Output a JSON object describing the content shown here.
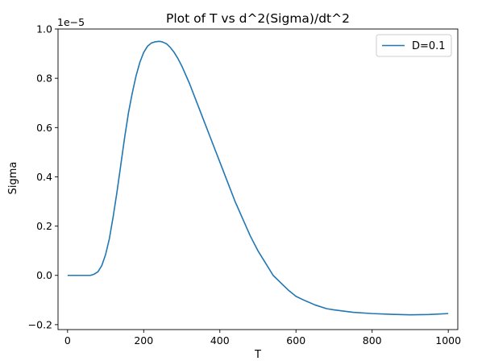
{
  "chart_data": {
    "type": "line",
    "title": "Plot of T vs d^2(Sigma)/dt^2",
    "xlabel": "T",
    "ylabel": "Sigma",
    "offset_label": "1e−5",
    "xlim": [
      -25,
      1025
    ],
    "ylim": [
      -0.22,
      1.0
    ],
    "x_ticks": [
      0,
      200,
      400,
      600,
      800,
      1000
    ],
    "x_tick_labels": [
      "0",
      "200",
      "400",
      "600",
      "800",
      "1000"
    ],
    "y_ticks": [
      -0.2,
      0.0,
      0.2,
      0.4,
      0.6,
      0.8,
      1.0
    ],
    "y_tick_labels": [
      "−0.2",
      "0.0",
      "0.2",
      "0.4",
      "0.6",
      "0.8",
      "1.0"
    ],
    "grid": false,
    "legend_position": "upper right",
    "series": [
      {
        "name": "D=0.1",
        "color": "#1f77b4",
        "x": [
          0,
          20,
          40,
          60,
          70,
          80,
          90,
          100,
          110,
          120,
          130,
          140,
          150,
          160,
          170,
          180,
          190,
          200,
          210,
          220,
          230,
          240,
          245,
          250,
          260,
          270,
          280,
          290,
          300,
          320,
          340,
          360,
          380,
          400,
          420,
          440,
          460,
          480,
          500,
          520,
          540,
          560,
          580,
          600,
          620,
          650,
          680,
          700,
          750,
          800,
          850,
          900,
          950,
          1000
        ],
        "y": [
          0.0,
          0.0,
          0.0,
          0.0,
          0.005,
          0.015,
          0.04,
          0.085,
          0.15,
          0.24,
          0.34,
          0.45,
          0.56,
          0.66,
          0.74,
          0.81,
          0.865,
          0.905,
          0.93,
          0.943,
          0.948,
          0.95,
          0.949,
          0.947,
          0.94,
          0.925,
          0.905,
          0.88,
          0.85,
          0.78,
          0.7,
          0.62,
          0.54,
          0.46,
          0.38,
          0.3,
          0.23,
          0.16,
          0.1,
          0.05,
          0.0,
          -0.03,
          -0.06,
          -0.085,
          -0.1,
          -0.12,
          -0.135,
          -0.14,
          -0.15,
          -0.155,
          -0.158,
          -0.16,
          -0.159,
          -0.155
        ]
      }
    ]
  }
}
